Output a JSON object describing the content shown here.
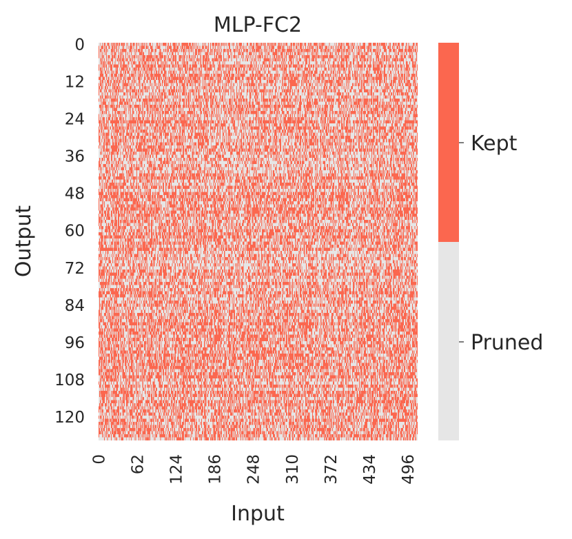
{
  "chart_data": {
    "type": "heatmap",
    "title": "MLP-FC2",
    "xlabel": "Input",
    "ylabel": "Output",
    "n_rows": 128,
    "n_cols": 512,
    "xticks": [
      "0",
      "62",
      "124",
      "186",
      "248",
      "310",
      "372",
      "434",
      "496"
    ],
    "xtick_values": [
      0,
      62,
      124,
      186,
      248,
      310,
      372,
      434,
      496
    ],
    "yticks": [
      "0",
      "12",
      "24",
      "36",
      "48",
      "60",
      "72",
      "84",
      "96",
      "108",
      "120"
    ],
    "ytick_values": [
      0,
      12,
      24,
      36,
      48,
      60,
      72,
      84,
      96,
      108,
      120
    ],
    "colorbar": {
      "categories": [
        "Kept",
        "Pruned"
      ],
      "colors": {
        "Kept": "#fb674f",
        "Pruned": "#e6e6e6"
      }
    },
    "kept_fraction_approx": 0.5
  }
}
